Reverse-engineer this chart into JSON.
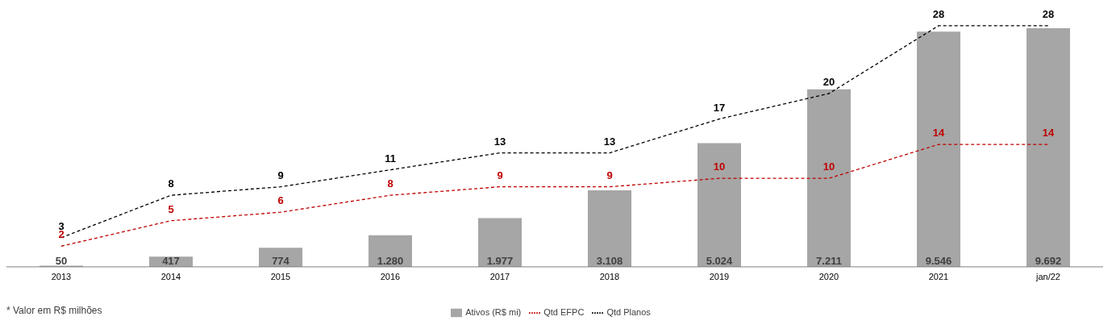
{
  "chart_data": {
    "type": "bar",
    "categories": [
      "2013",
      "2014",
      "2015",
      "2016",
      "2017",
      "2018",
      "2019",
      "2020",
      "2021",
      "jan/22"
    ],
    "series": [
      {
        "name": "Ativos (R$ mi)",
        "color": "#a6a6a6",
        "values": [
          50,
          417,
          774,
          1280,
          1977,
          3108,
          5024,
          7211,
          9546,
          9692
        ],
        "value_labels": [
          "50",
          "417",
          "774",
          "1.280",
          "1.977",
          "3.108",
          "5.024",
          "7.211",
          "9.546",
          "9.692"
        ]
      },
      {
        "name": "Qtd EFPC",
        "type": "line",
        "axis": "y2",
        "color": "#c00000",
        "values": [
          2,
          5,
          6,
          8,
          9,
          9,
          10,
          10,
          14,
          14
        ],
        "data_labels": true
      },
      {
        "name": "Qtd Planos",
        "type": "line",
        "axis": "y2",
        "color": "#000000",
        "values": [
          3,
          8,
          9,
          11,
          13,
          13,
          17,
          20,
          28,
          28
        ],
        "data_labels": true
      }
    ],
    "line_style": "dashed",
    "marker": "none",
    "legend": "bottom",
    "tick_labels": "x",
    "annotations": [
      "* Valor em R$ milhões"
    ]
  }
}
